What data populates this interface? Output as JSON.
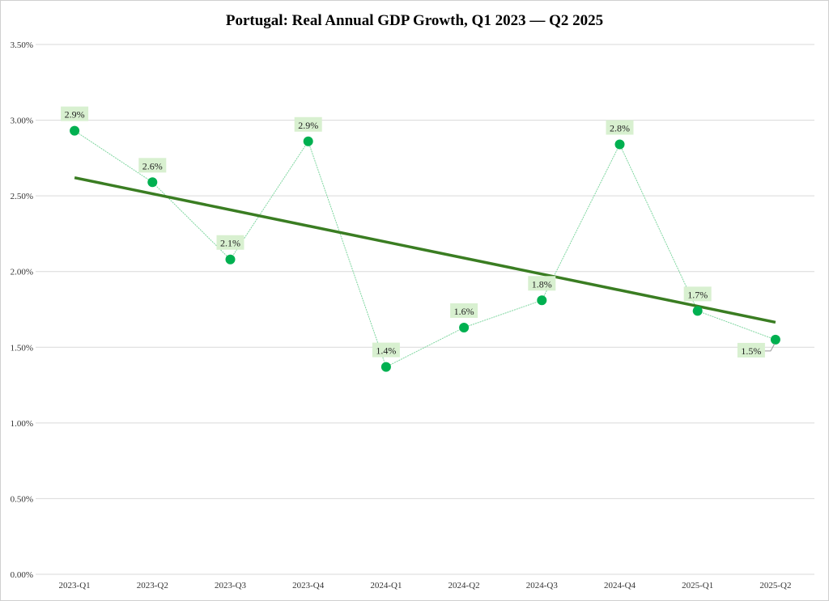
{
  "chart_data": {
    "type": "line",
    "title": "Portugal: Real Annual GDP Growth, Q1 2023 — Q2 2025",
    "xlabel": "",
    "ylabel": "",
    "categories": [
      "2023-Q1",
      "2023-Q2",
      "2023-Q3",
      "2023-Q4",
      "2024-Q1",
      "2024-Q2",
      "2024-Q3",
      "2024-Q4",
      "2025-Q1",
      "2025-Q2"
    ],
    "series": [
      {
        "name": "Real Annual GDP Growth (%)",
        "values": [
          2.93,
          2.59,
          2.08,
          2.86,
          1.37,
          1.63,
          1.81,
          2.84,
          1.74,
          1.55
        ],
        "labels": [
          "2.9%",
          "2.6%",
          "2.1%",
          "2.9%",
          "1.4%",
          "1.6%",
          "1.8%",
          "2.8%",
          "1.7%",
          "1.5%"
        ],
        "color": "#00b050"
      },
      {
        "name": "Linear trend",
        "type": "trendline",
        "start": 2.62,
        "end": 1.665,
        "color": "#3a7d22"
      }
    ],
    "ylim": [
      0,
      3.5
    ],
    "yticks": [
      "0.00%",
      "0.50%",
      "1.00%",
      "1.50%",
      "2.00%",
      "2.50%",
      "3.00%",
      "3.50%"
    ],
    "grid": true,
    "legend": "none"
  }
}
